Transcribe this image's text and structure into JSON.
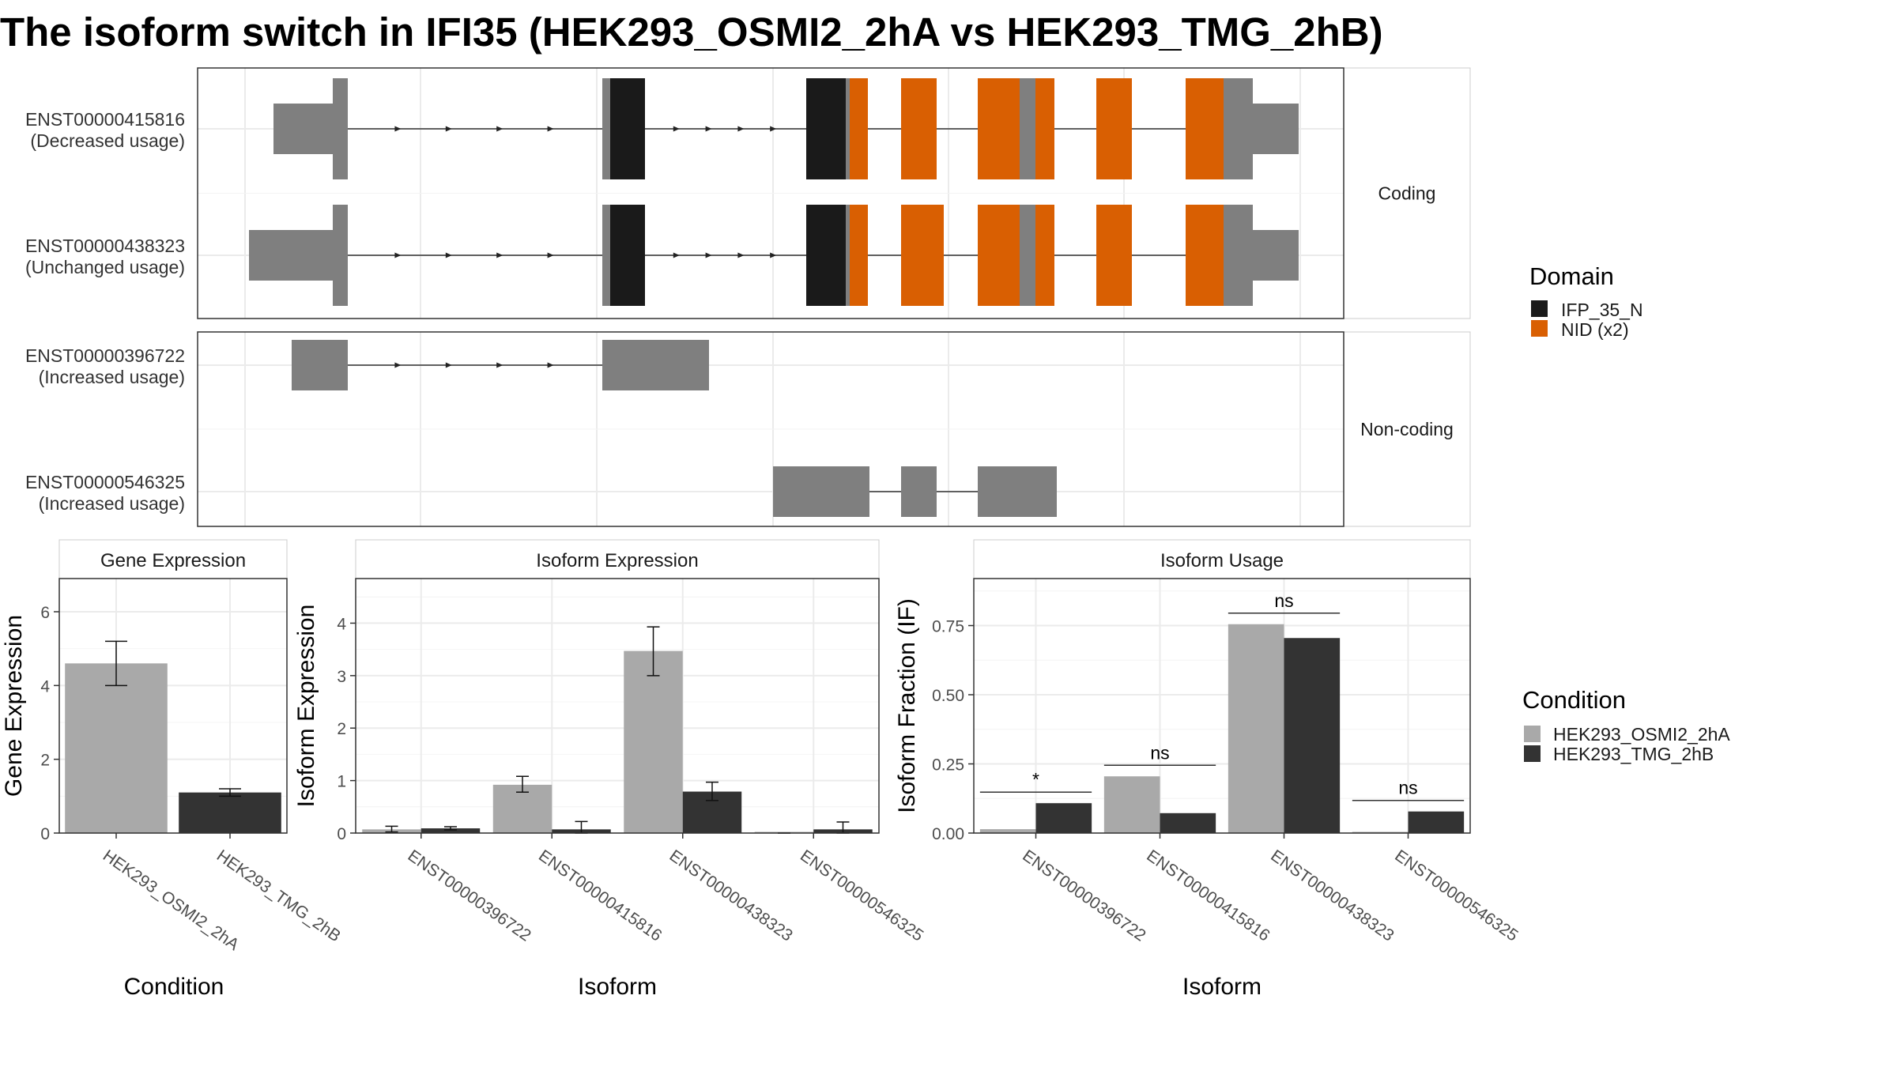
{
  "title": "The isoform switch in IFI35 (HEK293_OSMI2_2hA vs HEK293_TMG_2hB)",
  "colors": {
    "utr": "#7f7f7f",
    "cds": "#7f7f7f",
    "domain_IFP": "#1a1a1a",
    "domain_NID": "#d95f02",
    "cond_A": "#a9a9a9",
    "cond_B": "#333333",
    "grid": "#ebebeb"
  },
  "structure": {
    "facets": [
      {
        "label": "Coding",
        "transcripts": [
          {
            "id": "ENST00000415816",
            "usage": "(Decreased usage)"
          },
          {
            "id": "ENST00000438323",
            "usage": "(Unchanged usage)"
          }
        ]
      },
      {
        "label": "Non-coding",
        "transcripts": [
          {
            "id": "ENST00000396722",
            "usage": "(Increased usage)"
          },
          {
            "id": "ENST00000546325",
            "usage": "(Increased usage)"
          }
        ]
      }
    ],
    "domain_legend": {
      "title": "Domain",
      "items": [
        {
          "label": "IFP_35_N",
          "color": "#1a1a1a"
        },
        {
          "label": "NID (x2)",
          "color": "#d95f02"
        }
      ]
    }
  },
  "chart_data": [
    {
      "type": "bar",
      "title": "Gene Expression",
      "xlabel": "Condition",
      "ylabel": "Gene Expression",
      "categories": [
        "HEK293_OSMI2_2hA",
        "HEK293_TMG_2hB"
      ],
      "values": [
        4.6,
        1.1
      ],
      "error_low": [
        4.0,
        1.0
      ],
      "error_high": [
        5.2,
        1.2
      ],
      "ylim": [
        0,
        6.9
      ],
      "yticks": [
        0,
        2,
        4,
        6
      ]
    },
    {
      "type": "bar",
      "title": "Isoform Expression",
      "xlabel": "Isoform",
      "ylabel": "Isoform Expression",
      "categories": [
        "ENST00000396722",
        "ENST00000415816",
        "ENST00000438323",
        "ENST00000546325"
      ],
      "series": [
        {
          "name": "HEK293_OSMI2_2hA",
          "values": [
            0.07,
            0.92,
            3.47,
            0.0
          ],
          "error_low": [
            0.02,
            0.78,
            3.0,
            0.0
          ],
          "error_high": [
            0.13,
            1.08,
            3.93,
            0.0
          ]
        },
        {
          "name": "HEK293_TMG_2hB",
          "values": [
            0.09,
            0.07,
            0.79,
            0.07
          ],
          "error_low": [
            0.06,
            0.0,
            0.62,
            0.0
          ],
          "error_high": [
            0.12,
            0.22,
            0.97,
            0.21
          ]
        }
      ],
      "ylim": [
        0,
        4.85
      ],
      "yticks": [
        0,
        1,
        2,
        3,
        4
      ]
    },
    {
      "type": "bar",
      "title": "Isoform Usage",
      "xlabel": "Isoform",
      "ylabel": "Isoform Fraction (IF)",
      "categories": [
        "ENST00000396722",
        "ENST00000415816",
        "ENST00000438323",
        "ENST00000546325"
      ],
      "series": [
        {
          "name": "HEK293_OSMI2_2hA",
          "values": [
            0.014,
            0.205,
            0.755,
            0.0
          ]
        },
        {
          "name": "HEK293_TMG_2hB",
          "values": [
            0.108,
            0.072,
            0.705,
            0.078
          ]
        }
      ],
      "significance": [
        "*",
        "ns",
        "ns",
        "ns"
      ],
      "ylim": [
        0,
        0.92
      ],
      "yticks": [
        "0.00",
        "0.25",
        "0.50",
        "0.75"
      ]
    }
  ],
  "condition_legend": {
    "title": "Condition",
    "items": [
      {
        "label": "HEK293_OSMI2_2hA",
        "color": "#a9a9a9"
      },
      {
        "label": "HEK293_TMG_2hB",
        "color": "#333333"
      }
    ]
  }
}
